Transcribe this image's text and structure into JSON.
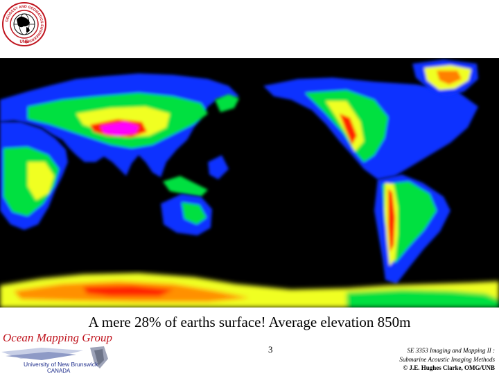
{
  "logo": {
    "ring_text": "GEODESY AND GEOMATICS ENGINEERING",
    "bottom_text": "UNB"
  },
  "map": {
    "colors": {
      "ocean": "#000000",
      "low": "#1030ff",
      "mid": "#00ff44",
      "high": "#ffff00",
      "higher": "#ff2000",
      "peak": "#ff00ff"
    }
  },
  "caption": "A mere 28% of earths surface! Average elevation 850m",
  "page_number": "3",
  "footer_left": {
    "title": "Ocean Mapping Group",
    "university": "University of New Brunswick",
    "country": "CANADA"
  },
  "footer_right": {
    "course_line1": "SE 3353 Imaging and Mapping II :",
    "course_line2": "Submarine Acoustic Imaging Methods",
    "copyright": "© J.E. Hughes Clarke, OMG/UNB"
  }
}
